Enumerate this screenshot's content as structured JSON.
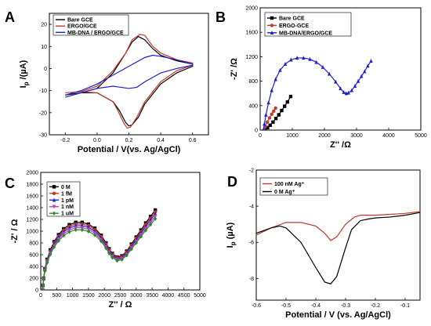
{
  "chart_data": [
    {
      "panel": "A",
      "type": "line",
      "xlabel": "Potential / V(vs. Ag/AgCl)",
      "ylabel": "I_p /(µA)",
      "xlim": [
        -0.3,
        0.7
      ],
      "ylim": [
        -30,
        25
      ],
      "xticks": [
        "-0.2",
        "0.0",
        "0.2",
        "0.4",
        "0.6"
      ],
      "xtick_values": [
        -0.2,
        0.0,
        0.2,
        0.4,
        0.6
      ],
      "yticks": [
        "-30",
        "-20",
        "-10",
        "0",
        "10",
        "20"
      ],
      "ytick_values": [
        -30,
        -20,
        -10,
        0,
        10,
        20
      ],
      "legend_position": "top-left",
      "series": [
        {
          "name": "Bare GCE",
          "color": "#000000",
          "x": [
            -0.2,
            -0.1,
            0.0,
            0.1,
            0.18,
            0.22,
            0.26,
            0.3,
            0.35,
            0.4,
            0.5,
            0.6,
            0.6,
            0.5,
            0.4,
            0.3,
            0.26,
            0.22,
            0.2,
            0.18,
            0.14,
            0.1,
            0.0,
            -0.1,
            -0.2
          ],
          "y": [
            -12,
            -11,
            -9,
            -2,
            7,
            12,
            14.5,
            13,
            9,
            6,
            3.5,
            2,
            1,
            -2,
            -7,
            -16,
            -22,
            -25.5,
            -26,
            -24.5,
            -19,
            -15,
            -11,
            -11,
            -12
          ]
        },
        {
          "name": "ERGO/GCE",
          "color": "#c0392b",
          "x": [
            -0.2,
            -0.1,
            0.0,
            0.1,
            0.18,
            0.22,
            0.27,
            0.3,
            0.35,
            0.4,
            0.5,
            0.6,
            0.6,
            0.5,
            0.4,
            0.3,
            0.25,
            0.21,
            0.19,
            0.17,
            0.13,
            0.1,
            0.0,
            -0.1,
            -0.2
          ],
          "y": [
            -11,
            -10.5,
            -8,
            -1,
            7,
            13,
            15.5,
            15,
            10,
            7,
            4,
            2.5,
            1.5,
            -1,
            -6,
            -15,
            -22,
            -26.5,
            -27,
            -25,
            -19,
            -15,
            -11,
            -10.5,
            -11
          ]
        },
        {
          "name": "MB-DNA / ERGO/GCE",
          "color": "#1f1fd0",
          "x": [
            -0.2,
            -0.1,
            0.0,
            0.1,
            0.2,
            0.3,
            0.35,
            0.4,
            0.5,
            0.6,
            0.6,
            0.5,
            0.4,
            0.3,
            0.25,
            0.2,
            0.15,
            0.1,
            0.0,
            -0.1,
            -0.2
          ],
          "y": [
            -12,
            -10,
            -7,
            -3,
            1,
            5,
            6,
            5.5,
            4,
            2,
            1.5,
            0,
            -2,
            -6,
            -8.5,
            -9,
            -8.5,
            -8,
            -9,
            -11,
            -13
          ]
        }
      ]
    },
    {
      "panel": "B",
      "type": "scatter",
      "xlabel": "Z'' /Ω",
      "ylabel": "-Z' /Ω",
      "xlim": [
        0,
        5000
      ],
      "ylim": [
        0,
        2000
      ],
      "xticks": [
        "0",
        "1000",
        "2000",
        "3000",
        "4000",
        "5000"
      ],
      "xtick_values": [
        0,
        1000,
        2000,
        3000,
        4000,
        5000
      ],
      "yticks": [
        "0",
        "400",
        "800",
        "1200",
        "1600",
        "2000"
      ],
      "ytick_values": [
        0,
        400,
        800,
        1200,
        1600,
        2000
      ],
      "legend_position": "top-left",
      "series": [
        {
          "name": "Bare GCE",
          "color": "#000000",
          "marker": "square",
          "x": [
            150,
            230,
            310,
            400,
            490,
            580,
            670,
            760,
            850,
            950
          ],
          "y": [
            0,
            40,
            80,
            130,
            190,
            250,
            320,
            390,
            460,
            550
          ]
        },
        {
          "name": "ERGO-GCE",
          "color": "#c0392b",
          "marker": "circle",
          "x": [
            110,
            160,
            220,
            290,
            360,
            420,
            480
          ],
          "y": [
            0,
            60,
            130,
            200,
            260,
            310,
            360
          ]
        },
        {
          "name": "MB-DNA/ERGO/GCE",
          "color": "#1f1fd0",
          "marker": "triangle",
          "x": [
            100,
            130,
            180,
            260,
            360,
            480,
            620,
            780,
            960,
            1150,
            1350,
            1550,
            1750,
            1950,
            2150,
            2350,
            2500,
            2600,
            2680,
            2750,
            2850,
            2950,
            3050,
            3150,
            3250,
            3350,
            3450
          ],
          "y": [
            0,
            100,
            250,
            450,
            650,
            830,
            980,
            1080,
            1150,
            1180,
            1180,
            1160,
            1110,
            1030,
            920,
            790,
            680,
            620,
            600,
            610,
            650,
            720,
            800,
            880,
            960,
            1050,
            1130
          ]
        }
      ]
    },
    {
      "panel": "C",
      "type": "scatter",
      "xlabel": "Z'' / Ω",
      "ylabel": "-Z' / Ω",
      "xlim": [
        0,
        5000
      ],
      "ylim": [
        0,
        2000
      ],
      "xticks": [
        "0",
        "500",
        "1000",
        "1500",
        "2000",
        "2500",
        "3000",
        "3500",
        "4000",
        "4500",
        "5000"
      ],
      "xtick_values": [
        0,
        500,
        1000,
        1500,
        2000,
        2500,
        3000,
        3500,
        4000,
        4500,
        5000
      ],
      "yticks": [
        "0",
        "200",
        "400",
        "600",
        "800",
        "1000",
        "1200",
        "1400",
        "1600",
        "1800",
        "2000"
      ],
      "ytick_values": [
        0,
        200,
        400,
        600,
        800,
        1000,
        1200,
        1400,
        1600,
        1800,
        2000
      ],
      "legend_position": "top-left",
      "series": [
        {
          "name": "0 M",
          "color": "#000000",
          "marker": "square",
          "scale": 1.0
        },
        {
          "name": "1 fM",
          "color": "#c0392b",
          "marker": "circle",
          "scale": 0.975
        },
        {
          "name": "1 pM",
          "color": "#1f1fd0",
          "marker": "triangle",
          "scale": 0.95
        },
        {
          "name": "1 nM",
          "color": "#c040c0",
          "marker": "triangle-down",
          "scale": 0.92
        },
        {
          "name": "1 uM",
          "color": "#2a8a2a",
          "marker": "diamond",
          "scale": 0.89
        }
      ],
      "base_curve": {
        "x": [
          60,
          70,
          90,
          130,
          200,
          300,
          420,
          560,
          720,
          900,
          1100,
          1300,
          1500,
          1700,
          1900,
          2050,
          2150,
          2250,
          2400,
          2550,
          2700,
          2850,
          3000,
          3150,
          3300,
          3450,
          3600
        ],
        "y": [
          0,
          80,
          200,
          360,
          520,
          680,
          820,
          940,
          1040,
          1110,
          1150,
          1150,
          1120,
          1050,
          930,
          800,
          700,
          620,
          560,
          580,
          660,
          780,
          900,
          1020,
          1140,
          1250,
          1360
        ]
      }
    },
    {
      "panel": "D",
      "type": "line",
      "xlabel": "Potential / V (vs. Ag/AgCl)",
      "ylabel": "I_p (µA)",
      "xlim": [
        -0.6,
        -0.05
      ],
      "ylim": [
        -9.2,
        -2
      ],
      "xticks": [
        "-0.6",
        "-0.5",
        "-0.4",
        "-0.3",
        "-0.2",
        "-0.1"
      ],
      "xtick_values": [
        -0.6,
        -0.5,
        -0.4,
        -0.3,
        -0.2,
        -0.1
      ],
      "yticks": [
        "-8",
        "-6",
        "-4",
        "-2"
      ],
      "ytick_values": [
        -8,
        -6,
        -4,
        -2
      ],
      "legend_position": "top-left",
      "series": [
        {
          "name": "100 nM Ag⁺",
          "color": "#c0392b",
          "x": [
            -0.6,
            -0.55,
            -0.5,
            -0.45,
            -0.4,
            -0.37,
            -0.35,
            -0.33,
            -0.3,
            -0.27,
            -0.25,
            -0.2,
            -0.15,
            -0.1,
            -0.05
          ],
          "y": [
            -5.6,
            -5.2,
            -4.9,
            -4.9,
            -5.1,
            -5.5,
            -5.9,
            -5.7,
            -5.0,
            -4.6,
            -4.5,
            -4.5,
            -4.45,
            -4.4,
            -4.3
          ]
        },
        {
          "name": "0 M Ag⁺",
          "color": "#000000",
          "x": [
            -0.6,
            -0.55,
            -0.52,
            -0.5,
            -0.45,
            -0.4,
            -0.37,
            -0.35,
            -0.33,
            -0.3,
            -0.28,
            -0.25,
            -0.22,
            -0.2,
            -0.15,
            -0.1,
            -0.05
          ],
          "y": [
            -5.5,
            -5.2,
            -5.1,
            -5.2,
            -6.0,
            -7.4,
            -8.2,
            -8.3,
            -7.9,
            -6.3,
            -5.3,
            -4.8,
            -4.7,
            -4.65,
            -4.6,
            -4.5,
            -4.35
          ]
        }
      ]
    }
  ]
}
